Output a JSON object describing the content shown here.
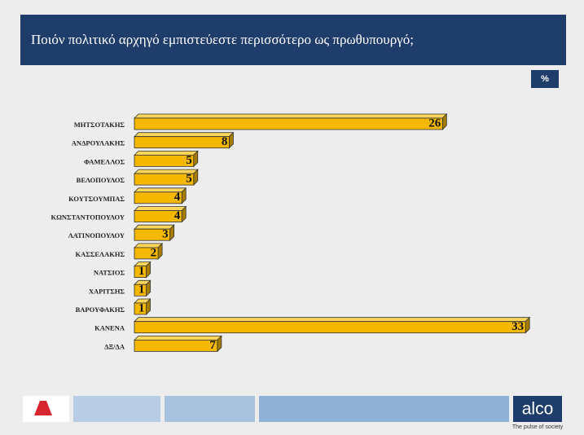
{
  "chart_data": {
    "type": "bar3d",
    "title": "Ποιόν πολιτικό αρχηγό εμπιστεύεστε περισσότερο ως πρωθυπουργό;",
    "unit": "%",
    "categories": [
      "ΜΗΤΣΟΤΑΚΗΣ",
      "ΑΝΔΡΟΥΛΑΚΗΣ",
      "ΦΑΜΕΛΛΟΣ",
      "ΒΕΛΟΠΟΥΛΟΣ",
      "ΚΟΥΤΣΟΥΜΠΑΣ",
      "ΚΩΝΣΤΑΝΤΟΠΟΥΛΟΥ",
      "ΛΑΤΙΝΟΠΟΥΛΟΥ",
      "ΚΑΣΣΕΛΑΚΗΣ",
      "ΝΑΤΣΙΟΣ",
      "ΧΑΡΙΤΣΗΣ",
      "ΒΑΡΟΥΦΑΚΗΣ",
      "ΚΑΝΕΝΑ",
      "ΔΞ/ΔΑ"
    ],
    "values": [
      26,
      8,
      5,
      5,
      4,
      4,
      3,
      2,
      1,
      1,
      1,
      33,
      7
    ],
    "color": "#f5b800",
    "footer": {
      "brand": "alco",
      "tagline": "The pulse of society"
    }
  }
}
